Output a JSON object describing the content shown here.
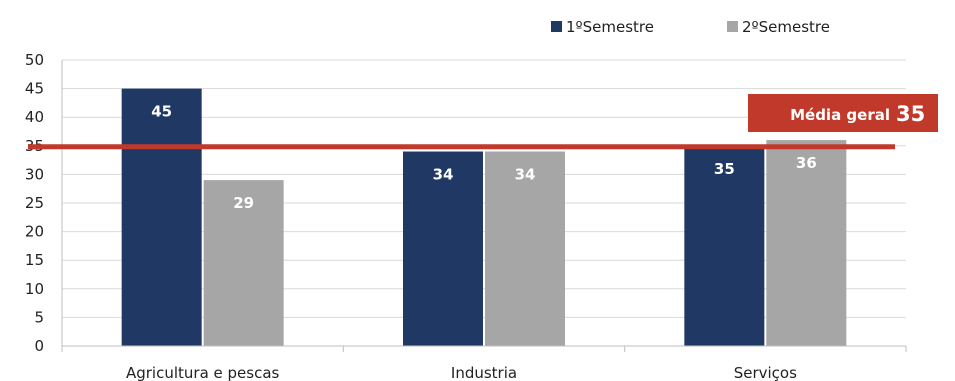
{
  "chart_data": {
    "type": "bar",
    "categories": [
      "Agricultura e pescas",
      "Industria",
      "Serviços"
    ],
    "series": [
      {
        "name": "1ºSemestre",
        "values": [
          45,
          34,
          35
        ],
        "color": "#1f3864"
      },
      {
        "name": "2ºSemestre",
        "values": [
          29,
          34,
          36
        ],
        "color": "#a6a6a6"
      }
    ],
    "ylim": [
      0,
      50
    ],
    "yticks": [
      0,
      5,
      10,
      15,
      20,
      25,
      30,
      35,
      40,
      45,
      50
    ],
    "grid": true,
    "legend_position": "top-right",
    "reference_line": {
      "value": 35,
      "color": "#c0392b",
      "label_text": "Média geral",
      "label_value": "35"
    }
  }
}
